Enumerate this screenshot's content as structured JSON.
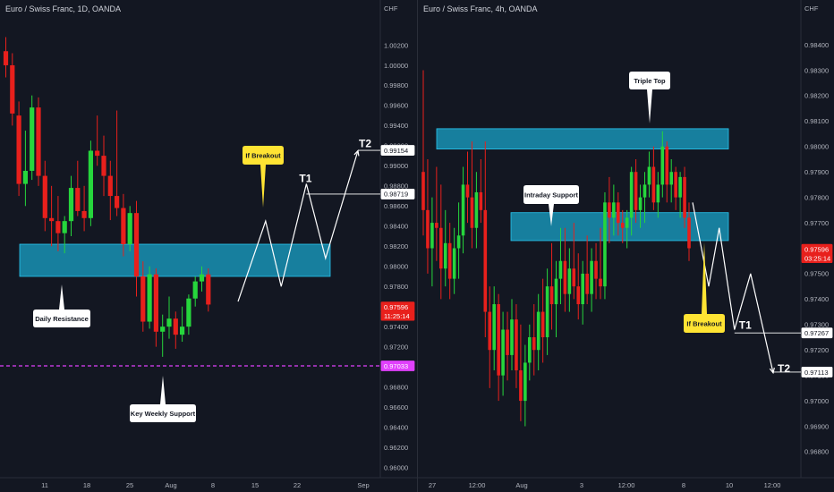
{
  "chart_data": [
    {
      "type": "candlestick",
      "title": "Euro / Swiss Franc, 1D, OANDA",
      "currency_label": "CHF",
      "x_ticks": [
        "11",
        "18",
        "25",
        "Aug",
        "8",
        "15",
        "22",
        "Sep"
      ],
      "y_ticks": [
        "0.96000",
        "0.96200",
        "0.96400",
        "0.96600",
        "0.96800",
        "0.97000",
        "0.97200",
        "0.97400",
        "0.97600",
        "0.97800",
        "0.98000",
        "0.98200",
        "0.98400",
        "0.98600",
        "0.98800",
        "0.99000",
        "0.99200",
        "0.99400",
        "0.99600",
        "0.99800",
        "1.00000",
        "1.00200"
      ],
      "ylim": [
        0.9596,
        1.0032
      ],
      "zone": {
        "low": 0.979,
        "high": 0.9822
      },
      "support_line": 0.9701,
      "candles": [
        {
          "o": 1.0014,
          "h": 1.0028,
          "l": 0.9988,
          "c": 1.0
        },
        {
          "o": 1.0,
          "h": 1.0012,
          "l": 0.994,
          "c": 0.9952
        },
        {
          "o": 0.995,
          "h": 0.9964,
          "l": 0.987,
          "c": 0.9882
        },
        {
          "o": 0.9882,
          "h": 0.9935,
          "l": 0.986,
          "c": 0.9895
        },
        {
          "o": 0.9895,
          "h": 0.997,
          "l": 0.9886,
          "c": 0.9958
        },
        {
          "o": 0.9958,
          "h": 0.9968,
          "l": 0.988,
          "c": 0.989
        },
        {
          "o": 0.989,
          "h": 0.9905,
          "l": 0.9835,
          "c": 0.9848
        },
        {
          "o": 0.9848,
          "h": 0.988,
          "l": 0.982,
          "c": 0.9845
        },
        {
          "o": 0.9845,
          "h": 0.987,
          "l": 0.9815,
          "c": 0.9833
        },
        {
          "o": 0.9833,
          "h": 0.985,
          "l": 0.9813,
          "c": 0.9845
        },
        {
          "o": 0.9845,
          "h": 0.989,
          "l": 0.983,
          "c": 0.9878
        },
        {
          "o": 0.9878,
          "h": 0.9905,
          "l": 0.985,
          "c": 0.9855
        },
        {
          "o": 0.9855,
          "h": 0.988,
          "l": 0.9835,
          "c": 0.9848
        },
        {
          "o": 0.9848,
          "h": 0.9925,
          "l": 0.984,
          "c": 0.9915
        },
        {
          "o": 0.9915,
          "h": 0.995,
          "l": 0.99,
          "c": 0.991
        },
        {
          "o": 0.991,
          "h": 0.993,
          "l": 0.987,
          "c": 0.989
        },
        {
          "o": 0.989,
          "h": 0.9905,
          "l": 0.9846,
          "c": 0.987
        },
        {
          "o": 0.987,
          "h": 0.9955,
          "l": 0.985,
          "c": 0.9858
        },
        {
          "o": 0.9858,
          "h": 0.9872,
          "l": 0.981,
          "c": 0.9822
        },
        {
          "o": 0.9822,
          "h": 0.986,
          "l": 0.9815,
          "c": 0.9853
        },
        {
          "o": 0.9853,
          "h": 0.9865,
          "l": 0.977,
          "c": 0.979
        },
        {
          "o": 0.979,
          "h": 0.9805,
          "l": 0.9735,
          "c": 0.9745
        },
        {
          "o": 0.9745,
          "h": 0.98,
          "l": 0.9738,
          "c": 0.9792
        },
        {
          "o": 0.9792,
          "h": 0.9798,
          "l": 0.972,
          "c": 0.9735
        },
        {
          "o": 0.9735,
          "h": 0.9752,
          "l": 0.971,
          "c": 0.974
        },
        {
          "o": 0.974,
          "h": 0.977,
          "l": 0.9728,
          "c": 0.9748
        },
        {
          "o": 0.9748,
          "h": 0.9755,
          "l": 0.9718,
          "c": 0.9732
        },
        {
          "o": 0.9732,
          "h": 0.976,
          "l": 0.9725,
          "c": 0.974
        },
        {
          "o": 0.974,
          "h": 0.9772,
          "l": 0.9732,
          "c": 0.9768
        },
        {
          "o": 0.9768,
          "h": 0.979,
          "l": 0.976,
          "c": 0.9785
        },
        {
          "o": 0.9785,
          "h": 0.98,
          "l": 0.9775,
          "c": 0.9792
        },
        {
          "o": 0.9792,
          "h": 0.9798,
          "l": 0.9755,
          "c": 0.9762
        }
      ],
      "last_price": "0.97596",
      "countdown": "11:25:14",
      "support_price": "0.97033",
      "t1_price": "0.98719",
      "t2_price": "0.99154",
      "projection": [
        [
          0.9765,
          0
        ],
        [
          0.9845,
          0.23
        ],
        [
          0.978,
          0.36
        ],
        [
          0.9882,
          0.57
        ],
        [
          0.9808,
          0.73
        ],
        [
          0.9915,
          1.0
        ]
      ],
      "labels": {
        "resistance": "Daily Resistance",
        "support": "Key Weekly Support",
        "breakout": "If Breakout",
        "t1": "T1",
        "t2": "T2"
      }
    },
    {
      "type": "candlestick",
      "title": "Euro / Swiss Franc, 4h, OANDA",
      "currency_label": "CHF",
      "x_ticks": [
        "27",
        "12:00",
        "Aug",
        "3",
        "12:00",
        "8",
        "10",
        "12:00"
      ],
      "y_ticks": [
        "0.96800",
        "0.96900",
        "0.97000",
        "0.97100",
        "0.97200",
        "0.97300",
        "0.97400",
        "0.97500",
        "0.97600",
        "0.97700",
        "0.97800",
        "0.97900",
        "0.98000",
        "0.98100",
        "0.98200",
        "0.98300",
        "0.98400"
      ],
      "ylim": [
        0.9674,
        0.9846
      ],
      "zone_top": {
        "low": 0.9799,
        "high": 0.9807
      },
      "zone_mid": {
        "low": 0.9763,
        "high": 0.9774
      },
      "candles": [
        {
          "o": 0.979,
          "h": 0.983,
          "l": 0.9765,
          "c": 0.9775
        },
        {
          "o": 0.9775,
          "h": 0.9795,
          "l": 0.975,
          "c": 0.976
        },
        {
          "o": 0.976,
          "h": 0.978,
          "l": 0.9745,
          "c": 0.977
        },
        {
          "o": 0.977,
          "h": 0.9792,
          "l": 0.9755,
          "c": 0.9768
        },
        {
          "o": 0.9768,
          "h": 0.9785,
          "l": 0.974,
          "c": 0.9752
        },
        {
          "o": 0.9752,
          "h": 0.9775,
          "l": 0.9745,
          "c": 0.9762
        },
        {
          "o": 0.9762,
          "h": 0.977,
          "l": 0.974,
          "c": 0.9748
        },
        {
          "o": 0.9748,
          "h": 0.9768,
          "l": 0.9742,
          "c": 0.976
        },
        {
          "o": 0.976,
          "h": 0.9778,
          "l": 0.9748,
          "c": 0.9765
        },
        {
          "o": 0.9765,
          "h": 0.9792,
          "l": 0.9758,
          "c": 0.9785
        },
        {
          "o": 0.9785,
          "h": 0.9798,
          "l": 0.977,
          "c": 0.978
        },
        {
          "o": 0.978,
          "h": 0.9802,
          "l": 0.976,
          "c": 0.9768
        },
        {
          "o": 0.9768,
          "h": 0.979,
          "l": 0.976,
          "c": 0.9782
        },
        {
          "o": 0.9782,
          "h": 0.9795,
          "l": 0.977,
          "c": 0.9775
        },
        {
          "o": 0.9775,
          "h": 0.9802,
          "l": 0.9725,
          "c": 0.9735
        },
        {
          "o": 0.9735,
          "h": 0.9745,
          "l": 0.9705,
          "c": 0.972
        },
        {
          "o": 0.972,
          "h": 0.9745,
          "l": 0.9712,
          "c": 0.9738
        },
        {
          "o": 0.9738,
          "h": 0.9742,
          "l": 0.97,
          "c": 0.971
        },
        {
          "o": 0.971,
          "h": 0.9735,
          "l": 0.9702,
          "c": 0.9728
        },
        {
          "o": 0.9728,
          "h": 0.9735,
          "l": 0.9708,
          "c": 0.9718
        },
        {
          "o": 0.9718,
          "h": 0.974,
          "l": 0.9712,
          "c": 0.9732
        },
        {
          "o": 0.9732,
          "h": 0.9738,
          "l": 0.9705,
          "c": 0.9712
        },
        {
          "o": 0.9712,
          "h": 0.973,
          "l": 0.9692,
          "c": 0.97
        },
        {
          "o": 0.97,
          "h": 0.9722,
          "l": 0.969,
          "c": 0.9715
        },
        {
          "o": 0.9715,
          "h": 0.973,
          "l": 0.9708,
          "c": 0.9725
        },
        {
          "o": 0.9725,
          "h": 0.9738,
          "l": 0.971,
          "c": 0.972
        },
        {
          "o": 0.972,
          "h": 0.9742,
          "l": 0.9712,
          "c": 0.9735
        },
        {
          "o": 0.9735,
          "h": 0.9748,
          "l": 0.9715,
          "c": 0.9725
        },
        {
          "o": 0.9725,
          "h": 0.9752,
          "l": 0.9718,
          "c": 0.9745
        },
        {
          "o": 0.9745,
          "h": 0.9762,
          "l": 0.9728,
          "c": 0.9738
        },
        {
          "o": 0.9738,
          "h": 0.9755,
          "l": 0.9725,
          "c": 0.9748
        },
        {
          "o": 0.9748,
          "h": 0.9768,
          "l": 0.9738,
          "c": 0.9755
        },
        {
          "o": 0.9755,
          "h": 0.9768,
          "l": 0.9735,
          "c": 0.9742
        },
        {
          "o": 0.9742,
          "h": 0.976,
          "l": 0.9735,
          "c": 0.9752
        },
        {
          "o": 0.9752,
          "h": 0.977,
          "l": 0.974,
          "c": 0.9745
        },
        {
          "o": 0.9745,
          "h": 0.9758,
          "l": 0.9732,
          "c": 0.9738
        },
        {
          "o": 0.9738,
          "h": 0.9755,
          "l": 0.973,
          "c": 0.975
        },
        {
          "o": 0.975,
          "h": 0.9765,
          "l": 0.9738,
          "c": 0.9742
        },
        {
          "o": 0.9742,
          "h": 0.976,
          "l": 0.9735,
          "c": 0.9755
        },
        {
          "o": 0.9755,
          "h": 0.9762,
          "l": 0.974,
          "c": 0.9748
        },
        {
          "o": 0.9748,
          "h": 0.9768,
          "l": 0.974,
          "c": 0.9745
        },
        {
          "o": 0.9745,
          "h": 0.9782,
          "l": 0.974,
          "c": 0.9778
        },
        {
          "o": 0.9778,
          "h": 0.9788,
          "l": 0.9762,
          "c": 0.9772
        },
        {
          "o": 0.9772,
          "h": 0.9785,
          "l": 0.9765,
          "c": 0.9778
        },
        {
          "o": 0.9778,
          "h": 0.9782,
          "l": 0.9765,
          "c": 0.977
        },
        {
          "o": 0.977,
          "h": 0.9775,
          "l": 0.9762,
          "c": 0.9768
        },
        {
          "o": 0.9768,
          "h": 0.9775,
          "l": 0.976,
          "c": 0.9772
        },
        {
          "o": 0.9772,
          "h": 0.9792,
          "l": 0.9765,
          "c": 0.979
        },
        {
          "o": 0.979,
          "h": 0.9795,
          "l": 0.977,
          "c": 0.9775
        },
        {
          "o": 0.9775,
          "h": 0.9785,
          "l": 0.9768,
          "c": 0.978
        },
        {
          "o": 0.978,
          "h": 0.979,
          "l": 0.977,
          "c": 0.9785
        },
        {
          "o": 0.9785,
          "h": 0.9798,
          "l": 0.978,
          "c": 0.9792
        },
        {
          "o": 0.9792,
          "h": 0.98,
          "l": 0.9775,
          "c": 0.9778
        },
        {
          "o": 0.9778,
          "h": 0.979,
          "l": 0.9772,
          "c": 0.9785
        },
        {
          "o": 0.9785,
          "h": 0.9806,
          "l": 0.978,
          "c": 0.98
        },
        {
          "o": 0.98,
          "h": 0.9802,
          "l": 0.9778,
          "c": 0.9785
        },
        {
          "o": 0.9785,
          "h": 0.9795,
          "l": 0.9778,
          "c": 0.979
        },
        {
          "o": 0.979,
          "h": 0.9792,
          "l": 0.9775,
          "c": 0.978
        },
        {
          "o": 0.978,
          "h": 0.979,
          "l": 0.9772,
          "c": 0.9788
        },
        {
          "o": 0.9788,
          "h": 0.9792,
          "l": 0.9768,
          "c": 0.9772
        },
        {
          "o": 0.9772,
          "h": 0.9778,
          "l": 0.9755,
          "c": 0.976
        }
      ],
      "last_price": "0.97596",
      "countdown": "03:25:14",
      "t1_price": "0.97267",
      "t2_price": "0.97113",
      "projection": [
        [
          0.9778,
          0
        ],
        [
          0.9745,
          0.2
        ],
        [
          0.9768,
          0.33
        ],
        [
          0.9728,
          0.52
        ],
        [
          0.975,
          0.72
        ],
        [
          0.9711,
          1.0
        ]
      ],
      "labels": {
        "triple_top": "Triple Top",
        "support": "Intraday Support",
        "breakout": "If Breakout",
        "t1": "T1",
        "t2": "T2"
      }
    }
  ],
  "colors": {
    "background": "#131722",
    "bull": "#26d63c",
    "bear": "#e8201c",
    "zone": "#1aa3c8",
    "dashed": "#e040fb",
    "last_price_box": "#e8201c",
    "callout_white": "#ffffff",
    "callout_yellow": "#ffe433"
  }
}
